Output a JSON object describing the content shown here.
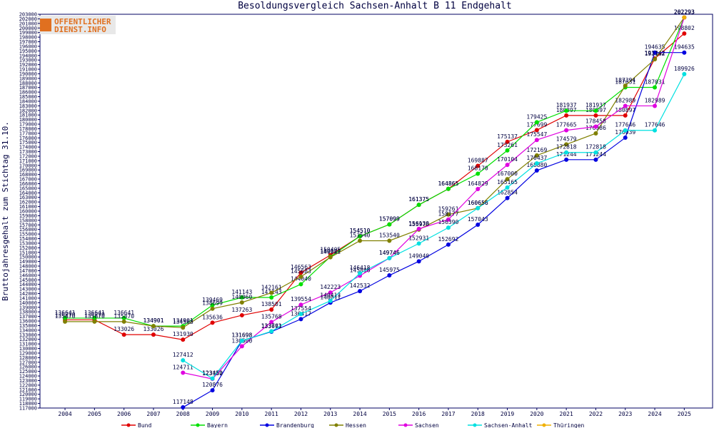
{
  "chart_data": {
    "type": "line",
    "title": "Besoldungsvergleich Sachsen-Anhalt B 11 Endgehalt",
    "logo": [
      "OFFENTLICHER",
      "DIENST.INFO"
    ],
    "y_label": "Bruttojahresgehalt zum Stichtag 31.10.",
    "categories": [
      "2004",
      "2005",
      "2006",
      "2007",
      "2008",
      "2009",
      "2010",
      "2011",
      "2012",
      "2013",
      "2014",
      "2015",
      "2016",
      "2017",
      "2018",
      "2019",
      "2020",
      "2021",
      "2022",
      "2023",
      "2024",
      "2025"
    ],
    "ylim": [
      117000,
      203000
    ],
    "yticks": [
      117000,
      118000,
      119000,
      120000,
      121000,
      122000,
      123000,
      124000,
      125000,
      126000,
      127000,
      128000,
      129000,
      130000,
      131000,
      132000,
      133000,
      134000,
      135000,
      136000,
      137000,
      138000,
      139000,
      140000,
      141000,
      142000,
      143000,
      144000,
      145000,
      146000,
      147000,
      148000,
      149000,
      150000,
      151000,
      152000,
      153000,
      154000,
      155000,
      156000,
      157000,
      158000,
      159000,
      160000,
      161000,
      162000,
      163000,
      164000,
      165000,
      166000,
      167000,
      168000,
      169000,
      170000,
      171000,
      172000,
      173000,
      174000,
      175000,
      176000,
      177000,
      178000,
      179000,
      180000,
      181000,
      182000,
      183000,
      184000,
      185000,
      186000,
      187000,
      188000,
      189000,
      190000,
      191000,
      192000,
      193000,
      194000,
      195000,
      196000,
      197000,
      198000,
      199000,
      200000,
      201000,
      202000,
      203000
    ],
    "series": [
      {
        "name": "Bund",
        "color": "#e00000",
        "values": [
          136270,
          136270,
          133026,
          133026,
          131930,
          135636,
          137263,
          138501,
          146563,
          150405,
          154510,
          157099,
          161375,
          164865,
          169887,
          175137,
          177699,
          180897,
          180897,
          180897,
          193342,
          198802
        ]
      },
      {
        "name": "Bayern",
        "color": "#00e000",
        "values": [
          136641,
          136641,
          136641,
          134901,
          134901,
          139469,
          141143,
          141143,
          144040,
          150049,
          154510,
          157099,
          161375,
          164865,
          168170,
          173261,
          179425,
          181937,
          181937,
          187031,
          187031,
          202293
        ]
      },
      {
        "name": "Brandenburg",
        "color": "#0000e0",
        "values": [
          null,
          null,
          null,
          null,
          117148,
          120876,
          131698,
          133673,
          136417,
          140011,
          142532,
          145975,
          149040,
          152692,
          157043,
          162854,
          168880,
          171244,
          171244,
          176039,
          194635,
          194635
        ]
      },
      {
        "name": "Hessen",
        "color": "#808000",
        "values": [
          135870,
          135870,
          135870,
          134901,
          134568,
          138699,
          140060,
          142161,
          145683,
          149922,
          153540,
          153540,
          155976,
          159261,
          160656,
          167000,
          172169,
          174579,
          176986,
          187394,
          193162,
          202293
        ]
      },
      {
        "name": "Sachsen",
        "color": "#e000e0",
        "values": [
          null,
          null,
          null,
          null,
          124711,
          123362,
          130500,
          135768,
          139554,
          142223,
          145896,
          149746,
          156130,
          158177,
          164829,
          170104,
          175547,
          177665,
          178458,
          182989,
          182989,
          202293
        ]
      },
      {
        "name": "Sachsen-Anhalt",
        "color": "#00e0e0",
        "values": [
          null,
          null,
          null,
          null,
          127412,
          123450,
          131698,
          133761,
          137554,
          140413,
          146418,
          149746,
          152931,
          156390,
          160656,
          165165,
          170437,
          172818,
          172818,
          177646,
          177646,
          189926
        ]
      },
      {
        "name": "Thüringen",
        "color": "#f0b000",
        "values": [
          null,
          null,
          null,
          null,
          null,
          null,
          null,
          null,
          null,
          null,
          null,
          null,
          null,
          null,
          null,
          null,
          null,
          null,
          null,
          null,
          null,
          202293
        ]
      }
    ]
  }
}
